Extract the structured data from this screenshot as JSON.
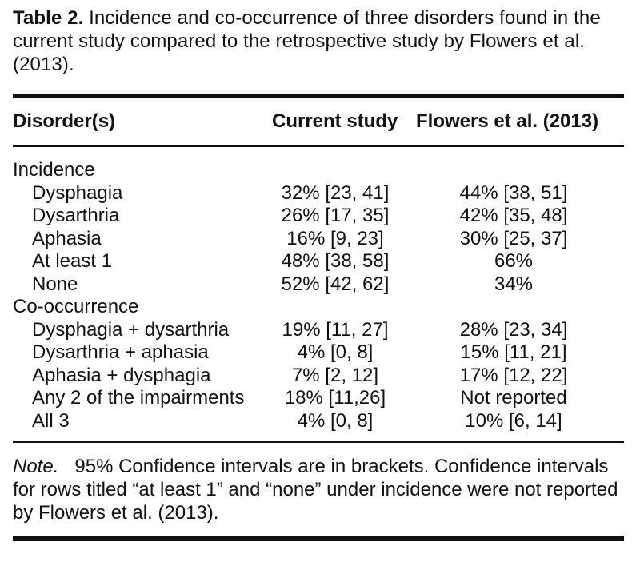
{
  "caption": {
    "label": "Table 2.",
    "text": " Incidence and co-occurrence of three disorders found in the current study compared to the retrospective study by Flowers et al. (2013)."
  },
  "table": {
    "headers": [
      "Disorder(s)",
      "Current study",
      "Flowers et al. (2013)"
    ],
    "sections": [
      {
        "title": "Incidence",
        "rows": [
          [
            "Dysphagia",
            "32% [23, 41]",
            "44% [38, 51]"
          ],
          [
            "Dysarthria",
            "26% [17, 35]",
            "42% [35, 48]"
          ],
          [
            "Aphasia",
            "16% [9, 23]",
            "30% [25, 37]"
          ],
          [
            "At least 1",
            "48% [38, 58]",
            "66%"
          ],
          [
            "None",
            "52% [42, 62]",
            "34%"
          ]
        ]
      },
      {
        "title": "Co-occurrence",
        "rows": [
          [
            "Dysphagia + dysarthria",
            "19% [11, 27]",
            "28% [23, 34]"
          ],
          [
            "Dysarthria + aphasia",
            "4% [0, 8]",
            "15% [11, 21]"
          ],
          [
            "Aphasia + dysphagia",
            "7% [2, 12]",
            "17% [12, 22]"
          ],
          [
            "Any 2 of the impairments",
            "18% [11,26]",
            "Not reported"
          ],
          [
            "All 3",
            "4% [0, 8]",
            "10% [6, 14]"
          ]
        ]
      }
    ]
  },
  "note": {
    "label": "Note.",
    "text": "   95% Confidence intervals are in brackets. Confidence intervals for rows titled “at least 1” and “none” under incidence were not reported by Flowers et al. (2013)."
  }
}
